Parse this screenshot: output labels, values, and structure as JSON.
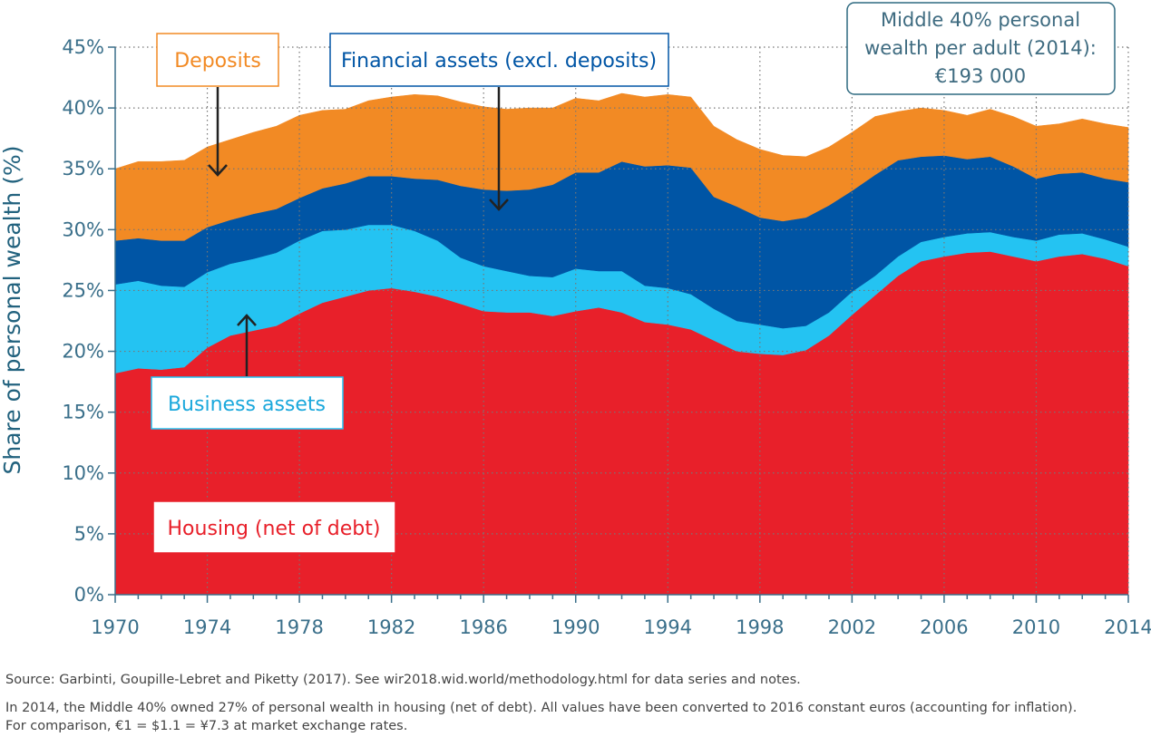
{
  "chart_data": {
    "type": "area",
    "stacked": true,
    "xlabel": "",
    "ylabel": "Share of personal wealth (%)",
    "xlim": [
      1970,
      2014
    ],
    "ylim": [
      0,
      45
    ],
    "x_ticks": [
      1970,
      1974,
      1978,
      1982,
      1986,
      1990,
      1994,
      1998,
      2002,
      2006,
      2010,
      2014
    ],
    "y_ticks": [
      0,
      5,
      10,
      15,
      20,
      25,
      30,
      35,
      40,
      45
    ],
    "y_tick_labels": [
      "0%",
      "5%",
      "10%",
      "15%",
      "20%",
      "25%",
      "30%",
      "35%",
      "40%",
      "45%"
    ],
    "grid": "dotted",
    "x": [
      1970,
      1971,
      1972,
      1973,
      1974,
      1975,
      1976,
      1977,
      1978,
      1979,
      1980,
      1981,
      1982,
      1983,
      1984,
      1985,
      1986,
      1987,
      1988,
      1989,
      1990,
      1991,
      1992,
      1993,
      1994,
      1995,
      1996,
      1997,
      1998,
      1999,
      2000,
      2001,
      2002,
      2003,
      2004,
      2005,
      2006,
      2007,
      2008,
      2009,
      2010,
      2011,
      2012,
      2013,
      2014
    ],
    "series": [
      {
        "name": "Housing (net of debt)",
        "color": "#e8202a",
        "values": [
          18.2,
          18.6,
          18.5,
          18.7,
          20.3,
          21.3,
          21.7,
          22.1,
          23.1,
          24.0,
          24.5,
          25.0,
          25.2,
          24.9,
          24.5,
          23.9,
          23.3,
          23.2,
          23.2,
          22.9,
          23.3,
          23.6,
          23.2,
          22.4,
          22.2,
          21.8,
          20.9,
          20.0,
          19.8,
          19.7,
          20.1,
          21.3,
          23.0,
          24.6,
          26.2,
          27.4,
          27.8,
          28.1,
          28.2,
          27.8,
          27.4,
          27.8,
          28.0,
          27.6,
          27.0
        ]
      },
      {
        "name": "Business assets",
        "color": "#24c3f2",
        "values": [
          7.3,
          7.2,
          6.9,
          6.6,
          6.2,
          5.9,
          5.9,
          6.0,
          6.0,
          5.9,
          5.5,
          5.4,
          5.2,
          5.0,
          4.6,
          3.8,
          3.7,
          3.4,
          3.0,
          3.2,
          3.5,
          3.0,
          3.4,
          3.0,
          3.0,
          2.9,
          2.6,
          2.5,
          2.4,
          2.2,
          2.0,
          1.9,
          1.9,
          1.6,
          1.6,
          1.6,
          1.6,
          1.6,
          1.6,
          1.6,
          1.7,
          1.8,
          1.7,
          1.6,
          1.6
        ]
      },
      {
        "name": "Financial assets (excl. deposits)",
        "color": "#0055a5",
        "values": [
          3.6,
          3.5,
          3.7,
          3.8,
          3.7,
          3.6,
          3.7,
          3.6,
          3.5,
          3.5,
          3.8,
          4.0,
          4.0,
          4.3,
          5.0,
          5.9,
          6.3,
          6.6,
          7.1,
          7.6,
          7.9,
          8.1,
          9.0,
          9.8,
          10.1,
          10.4,
          9.2,
          9.4,
          8.8,
          8.8,
          8.9,
          8.8,
          8.3,
          8.3,
          7.9,
          7.0,
          6.7,
          6.1,
          6.2,
          5.8,
          5.1,
          5.0,
          5.0,
          5.0,
          5.3
        ]
      },
      {
        "name": "Deposits",
        "color": "#f28a24",
        "values": [
          5.9,
          6.3,
          6.5,
          6.6,
          6.6,
          6.6,
          6.7,
          6.8,
          6.8,
          6.4,
          6.1,
          6.2,
          6.5,
          6.9,
          6.9,
          6.9,
          6.8,
          6.7,
          6.7,
          6.3,
          6.1,
          5.9,
          5.6,
          5.7,
          5.8,
          5.8,
          5.8,
          5.5,
          5.6,
          5.4,
          5.0,
          4.8,
          4.8,
          4.8,
          4.0,
          4.0,
          3.7,
          3.6,
          3.9,
          4.1,
          4.3,
          4.1,
          4.4,
          4.5,
          4.5
        ]
      }
    ],
    "labels": {
      "deposits": "Deposits",
      "financial": "Financial assets (excl. deposits)",
      "business": "Business assets",
      "housing": "Housing (net of debt)"
    },
    "inset": [
      "Middle 40% personal",
      "wealth per adult (2014):",
      "€193 000"
    ]
  },
  "notes": {
    "source": "Source: Garbinti, Goupille-Lebret and Piketty (2017). See wir2018.wid.world/methodology.html for data series and notes.",
    "line1": "In 2014, the Middle 40% owned 27% of personal wealth in housing (net of debt). All values have been converted to 2016 constant euros (accounting for inflation).",
    "line2": "For comparison, €1 = $1.1 = ¥7.3 at market exchange rates."
  }
}
